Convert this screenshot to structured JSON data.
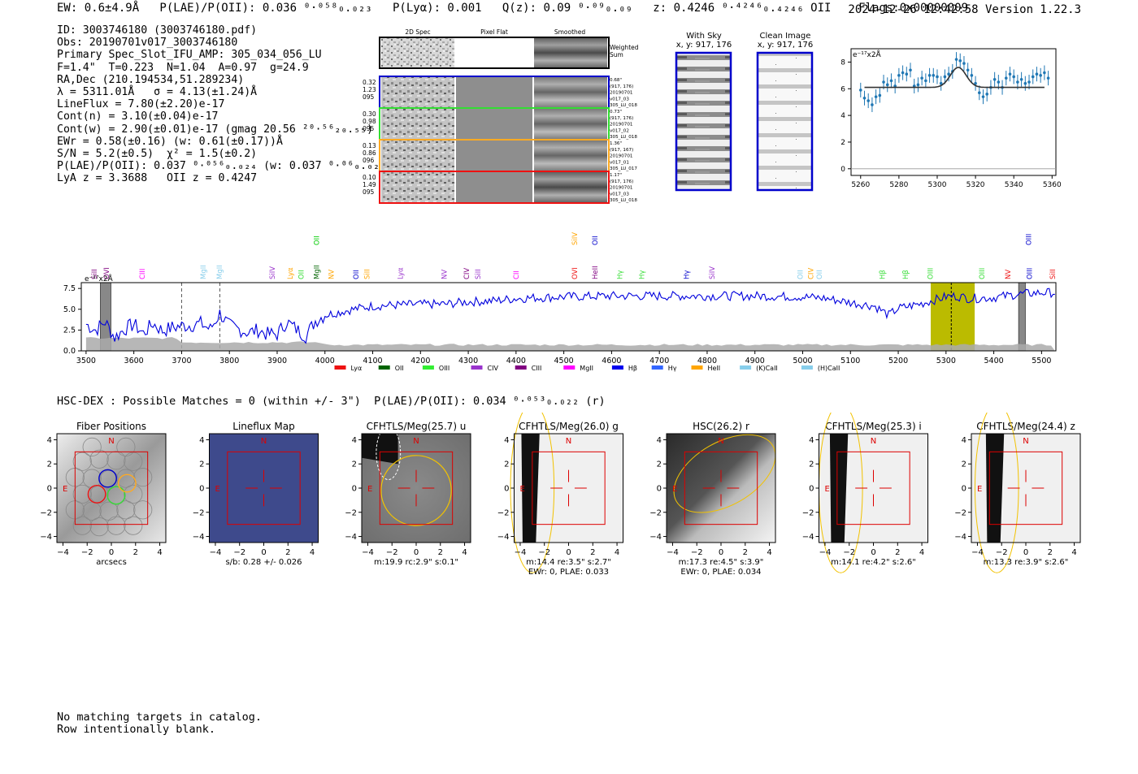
{
  "header": {
    "line": "EW: 0.6±4.9Å   P(LAE)/P(OII): 0.036 ⁰·⁰⁵⁸₀.₀₂₃   P(Lyα): 0.001   Q(z): 0.09 ⁰·⁰⁹₀.₀₉   z: 0.4246 ⁰·⁴²⁴⁶₀.₄₂₄₆ OII    Flags:0x00000009",
    "timestamp": "2024-12-26 12:42:58   Version 1.22.3"
  },
  "info": [
    "ID: 3003746180 (3003746180.pdf)",
    "Obs: 20190701v017_3003746180",
    "Primary Spec_Slot_IFU_AMP: 305_034_056_LU",
    "F=1.4\"  T=0.223  N=1.04  A=0.97  g=24.9",
    "RA,Dec (210.194534,51.289234)",
    "λ = 5311.01Å   σ = 4.13(±1.24)Å",
    "LineFlux = 7.80(±2.20)e-17",
    "Cont(n) = 3.10(±0.04)e-17",
    "Cont(w) = 2.90(±0.01)e-17 (gmag 20.56 ²⁰·⁵⁶₂₀.₅₅)",
    "EWr = 0.58(±0.16) (w: 0.61(±0.17))Å",
    "S/N = 5.2(±0.5)  χ² = 1.5(±0.2)",
    "P(LAE)/P(OII): 0.037 ⁰·⁰⁵⁶₀.₀₂₄ (w: 0.037 ⁰·⁰⁶₀.₀₂₅)",
    "LyA z = 3.3688   OII z = 0.4247"
  ],
  "twod": {
    "col_labels": [
      "2D Spec",
      "Pixel Flat",
      "Smoothed"
    ],
    "weighted_sum_label": [
      "Weighted",
      "Sum"
    ],
    "rows": [
      {
        "left": [
          "0.32",
          "1.23",
          "095"
        ],
        "right": [
          "0.68\"",
          "(917, 176)",
          "20190701",
          "v017_03",
          "305_LU_018"
        ],
        "color": "#0000cc"
      },
      {
        "left": [
          "0.30",
          "0.98",
          "095"
        ],
        "right": [
          "0.73\"",
          "(917, 176)",
          "20190701",
          "v017_02",
          "305_LU_018"
        ],
        "color": "#33dd33"
      },
      {
        "left": [
          "0.13",
          "0.86",
          "096"
        ],
        "right": [
          "1.36\"",
          "(917, 167)",
          "20190701",
          "v017_01",
          "305_LU_017"
        ],
        "color": "#ffaa22"
      },
      {
        "left": [
          "0.10",
          "1.49",
          "095"
        ],
        "right": [
          "1.17\"",
          "(917, 176)",
          "20190701",
          "v017_03",
          "305_LU_018"
        ],
        "color": "#ee1111"
      }
    ]
  },
  "sky": {
    "with_sky_title": "With Sky",
    "clean_title": "Clean Image",
    "coords": "x, y: 917, 176"
  },
  "chart_data": [
    {
      "type": "scatter",
      "id": "line-fit",
      "ylabel_note": "e⁻¹⁷x2Å",
      "xlim": [
        5255,
        5362
      ],
      "ylim": [
        -0.5,
        9
      ],
      "xticks": [
        5260,
        5280,
        5300,
        5320,
        5340,
        5360
      ],
      "yticks": [
        0,
        2,
        4,
        6,
        8
      ],
      "fit": {
        "continuum": 6.1,
        "peak": 7.6,
        "center": 5311,
        "sigma": 4.13
      },
      "x": [
        5260,
        5262,
        5264,
        5266,
        5268,
        5270,
        5272,
        5274,
        5276,
        5278,
        5280,
        5282,
        5284,
        5286,
        5288,
        5290,
        5292,
        5294,
        5296,
        5298,
        5300,
        5302,
        5304,
        5306,
        5308,
        5310,
        5312,
        5314,
        5316,
        5318,
        5320,
        5322,
        5324,
        5326,
        5328,
        5330,
        5332,
        5334,
        5336,
        5338,
        5340,
        5342,
        5344,
        5346,
        5348,
        5350,
        5352,
        5354,
        5356,
        5358
      ],
      "y": [
        5.9,
        5.3,
        5.1,
        4.8,
        5.4,
        5.5,
        6.5,
        6.3,
        6.6,
        6.2,
        7.0,
        7.2,
        7.1,
        7.4,
        6.2,
        6.3,
        6.8,
        6.6,
        7.0,
        7.0,
        6.9,
        6.4,
        6.9,
        7.1,
        7.3,
        8.2,
        8.1,
        7.9,
        7.4,
        7.0,
        6.4,
        5.7,
        5.4,
        5.6,
        6.1,
        6.7,
        6.5,
        6.1,
        6.8,
        7.1,
        6.9,
        6.5,
        6.7,
        6.4,
        6.5,
        6.9,
        7.1,
        7.0,
        7.2,
        6.8
      ],
      "yerr": 0.55
    },
    {
      "type": "line",
      "id": "full-spectrum",
      "ylabel_note": "e⁻¹⁷x2Å",
      "xlim": [
        3490,
        5530
      ],
      "ylim": [
        0,
        8.2
      ],
      "xticks": [
        3500,
        3600,
        3700,
        3800,
        3900,
        4000,
        4100,
        4200,
        4300,
        4400,
        4500,
        4600,
        4700,
        4800,
        4900,
        5000,
        5100,
        5200,
        5300,
        5400,
        5500
      ],
      "yticks": [
        0.0,
        2.5,
        5.0,
        7.5
      ],
      "highlight_band": [
        5268,
        5360
      ],
      "line_marker": 5311,
      "masked_bands": [
        [
          3530,
          3552
        ],
        [
          5452,
          5466
        ]
      ],
      "dashed_lines": [
        3700,
        3780
      ],
      "line_labels": [
        {
          "name": "SiII",
          "x": 3522,
          "color": "#800080",
          "tier": 0
        },
        {
          "name": "OVI",
          "x": 3548,
          "color": "#800080",
          "tier": 0
        },
        {
          "name": "CIII",
          "x": 3623,
          "color": "#ff00ff",
          "tier": 0
        },
        {
          "name": "MgII",
          "x": 3750,
          "color": "#87ceeb",
          "tier": 0
        },
        {
          "name": "MgII",
          "x": 3784,
          "color": "#87ceeb",
          "tier": 0
        },
        {
          "name": "SiIV",
          "x": 3895,
          "color": "#9933cc",
          "tier": 0
        },
        {
          "name": "Lyα",
          "x": 3932,
          "color": "#ffa500",
          "tier": 0
        },
        {
          "name": "OII",
          "x": 3955,
          "color": "#33dd33",
          "tier": 0
        },
        {
          "name": "MgII",
          "x": 3988,
          "color": "#006400",
          "tier": 0
        },
        {
          "name": "OII",
          "x": 3988,
          "color": "#00cc00",
          "tier": 2
        },
        {
          "name": "NV",
          "x": 4018,
          "color": "#ffa500",
          "tier": 0
        },
        {
          "name": "OII",
          "x": 4070,
          "color": "#0000cc",
          "tier": 0
        },
        {
          "name": "SiII",
          "x": 4093,
          "color": "#ffa500",
          "tier": 0
        },
        {
          "name": "Lyα",
          "x": 4163,
          "color": "#9933cc",
          "tier": 0
        },
        {
          "name": "NV",
          "x": 4255,
          "color": "#9933cc",
          "tier": 0
        },
        {
          "name": "CIV",
          "x": 4302,
          "color": "#800080",
          "tier": 0
        },
        {
          "name": "SiII",
          "x": 4325,
          "color": "#9933cc",
          "tier": 0
        },
        {
          "name": "CII",
          "x": 4405,
          "color": "#ff00ff",
          "tier": 0
        },
        {
          "name": "OVI",
          "x": 4528,
          "color": "#ee1111",
          "tier": 0
        },
        {
          "name": "SiIV",
          "x": 4528,
          "color": "#ffa500",
          "tier": 2
        },
        {
          "name": "HeII",
          "x": 4570,
          "color": "#800080",
          "tier": 0
        },
        {
          "name": "OII",
          "x": 4570,
          "color": "#0000cc",
          "tier": 2
        },
        {
          "name": "Hγ",
          "x": 4622,
          "color": "#33dd33",
          "tier": 0
        },
        {
          "name": "Hγ",
          "x": 4668,
          "color": "#33dd33",
          "tier": 0
        },
        {
          "name": "Hγ",
          "x": 4762,
          "color": "#0000cc",
          "tier": 0
        },
        {
          "name": "SiIV",
          "x": 4815,
          "color": "#9933cc",
          "tier": 0
        },
        {
          "name": "OII",
          "x": 5000,
          "color": "#87ceeb",
          "tier": 0
        },
        {
          "name": "CIV",
          "x": 5022,
          "color": "#ffa500",
          "tier": 0
        },
        {
          "name": "OII",
          "x": 5040,
          "color": "#87ceeb",
          "tier": 0
        },
        {
          "name": "Hβ",
          "x": 5172,
          "color": "#33dd33",
          "tier": 0
        },
        {
          "name": "Hβ",
          "x": 5220,
          "color": "#33dd33",
          "tier": 0
        },
        {
          "name": "OIII",
          "x": 5272,
          "color": "#33dd33",
          "tier": 0
        },
        {
          "name": "OIII",
          "x": 5380,
          "color": "#33dd33",
          "tier": 0
        },
        {
          "name": "NV",
          "x": 5435,
          "color": "#ee1111",
          "tier": 0
        },
        {
          "name": "OIII",
          "x": 5480,
          "color": "#0000cc",
          "tier": 0
        },
        {
          "name": "OIII",
          "x": 5478,
          "color": "#0000cc",
          "tier": 2
        },
        {
          "name": "SiII",
          "x": 5528,
          "color": "#ee1111",
          "tier": 0
        }
      ],
      "spectrum_anchors": {
        "x": [
          3500,
          3520,
          3540,
          3560,
          3580,
          3600,
          3620,
          3640,
          3660,
          3680,
          3700,
          3720,
          3740,
          3760,
          3780,
          3800,
          3820,
          3840,
          3860,
          3880,
          3900,
          3920,
          3940,
          3960,
          3980,
          4000,
          4050,
          4100,
          4150,
          4200,
          4250,
          4300,
          4350,
          4400,
          4450,
          4500,
          4600,
          4700,
          4800,
          4900,
          5000,
          5050,
          5100,
          5150,
          5180,
          5200,
          5250,
          5300,
          5320,
          5350,
          5400,
          5450,
          5500,
          5530
        ],
        "y": [
          3.2,
          2.5,
          3.5,
          1.6,
          2.6,
          3.2,
          2.1,
          3.3,
          2.4,
          2.8,
          3.0,
          3.1,
          3.3,
          2.6,
          4.5,
          3.0,
          2.6,
          2.2,
          2.5,
          2.0,
          2.0,
          3.5,
          2.6,
          1.8,
          3.6,
          4.3,
          4.9,
          5.4,
          5.5,
          5.6,
          5.6,
          5.9,
          6.0,
          6.3,
          6.4,
          6.5,
          6.6,
          6.6,
          6.6,
          6.6,
          6.5,
          6.3,
          5.8,
          5.4,
          4.3,
          5.1,
          5.7,
          6.5,
          6.6,
          6.3,
          6.4,
          6.8,
          7.0,
          7.0
        ]
      },
      "legend": [
        {
          "name": "Lyα",
          "color": "#ee1111"
        },
        {
          "name": "OII",
          "color": "#006400"
        },
        {
          "name": "OIII",
          "color": "#33ee33"
        },
        {
          "name": "CIV",
          "color": "#9933cc"
        },
        {
          "name": "CIII",
          "color": "#800080"
        },
        {
          "name": "MgII",
          "color": "#ff00ff"
        },
        {
          "name": "Hβ",
          "color": "#0000ee"
        },
        {
          "name": "Hγ",
          "color": "#3366ff"
        },
        {
          "name": "HeII",
          "color": "#ffa500"
        },
        {
          "name": "(K)CaII",
          "color": "#87ceeb"
        },
        {
          "name": "(H)CaII",
          "color": "#87ceeb"
        }
      ]
    }
  ],
  "hsc": {
    "line": "HSC-DEX : Possible Matches = 0 (within +/- 3\")  P(LAE)/P(OII): 0.034 ⁰·⁰⁵³₀.₀₂₂ (r)"
  },
  "cutouts": [
    {
      "title": "Fiber Positions",
      "caption": "arcsecs",
      "caption2": ""
    },
    {
      "title": "Lineflux Map",
      "caption": "s/b: 0.28 +/- 0.026",
      "caption2": ""
    },
    {
      "title": "CFHTLS/Meg(25.7) u",
      "caption": "m:19.9 rc:2.9\"  s:0.1\"",
      "caption2": ""
    },
    {
      "title": "CFHTLS/Meg(26.0) g",
      "caption": "m:14.4  re:3.5\"  s:2.7\"",
      "caption2": "EWr: 0, PLAE: 0.033"
    },
    {
      "title": "HSC(26.2) r",
      "caption": "m:17.3  re:4.5\"  s:3.9\"",
      "caption2": "EWr: 0, PLAE: 0.034"
    },
    {
      "title": "CFHTLS/Meg(25.3) i",
      "caption": "m:14.1  re:4.2\"  s:2.6\"",
      "caption2": ""
    },
    {
      "title": "CFHTLS/Meg(24.4) z",
      "caption": "m:13.3  re:3.9\"  s:2.6\"",
      "caption2": ""
    }
  ],
  "cutout_axes": {
    "ticks": [
      "−4",
      "−2",
      "0",
      "2",
      "4"
    ],
    "north": "N",
    "east": "E"
  },
  "footer": [
    "No matching targets in catalog.",
    "Row intentionally blank."
  ]
}
